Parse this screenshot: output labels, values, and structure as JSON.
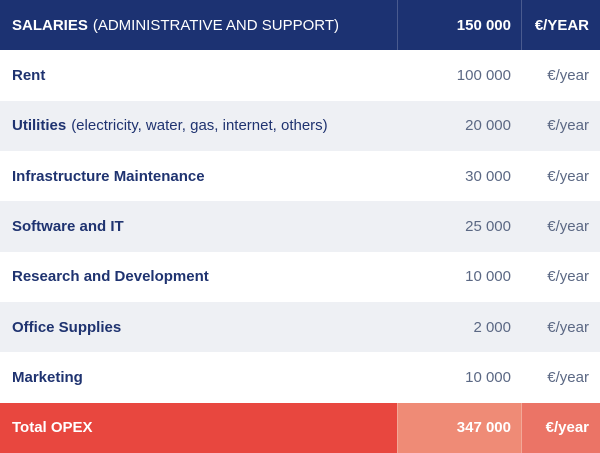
{
  "header": {
    "label": "SALARIES",
    "note": "(ADMINISTRATIVE AND SUPPORT)",
    "amount": "150 000",
    "unit": "€/YEAR"
  },
  "rows": [
    {
      "label": "Rent",
      "amount": "100 000",
      "unit": "€/year"
    },
    {
      "label": "Utilities",
      "note": "(electricity, water, gas, internet, others)",
      "amount": "20 000",
      "unit": "€/year"
    },
    {
      "label": "Infrastructure Maintenance",
      "amount": "30 000",
      "unit": "€/year"
    },
    {
      "label": "Software and IT",
      "amount": "25 000",
      "unit": "€/year"
    },
    {
      "label": "Research and Development",
      "amount": "10 000",
      "unit": "€/year"
    },
    {
      "label": "Office Supplies",
      "amount": "2 000",
      "unit": "€/year"
    },
    {
      "label": "Marketing",
      "amount": "10 000",
      "unit": "€/year"
    }
  ],
  "total": {
    "label": "Total OPEX",
    "amount": "347 000",
    "unit": "€/year"
  }
}
